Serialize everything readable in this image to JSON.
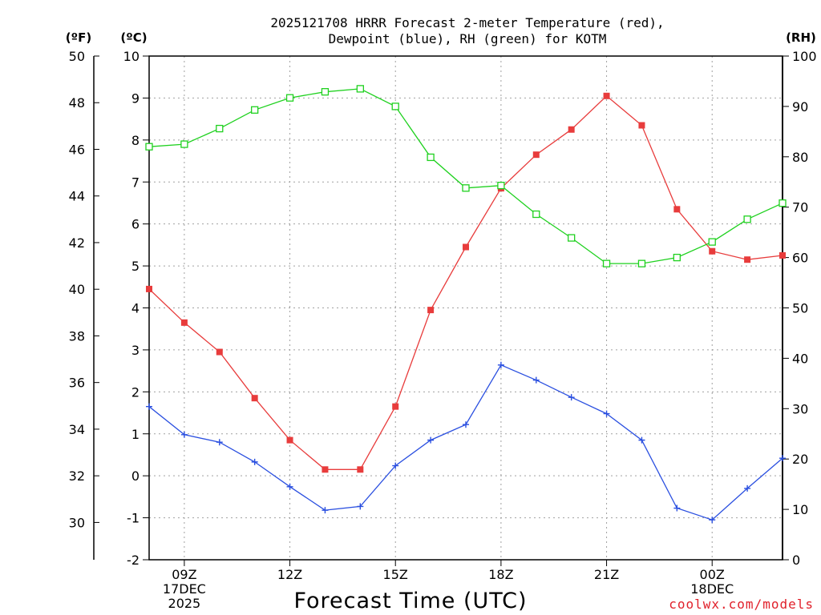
{
  "chart_data": {
    "type": "line",
    "title": [
      "2025121708 HRRR Forecast 2-meter Temperature (red),",
      "Dewpoint (blue), RH (green) for KOTM"
    ],
    "xlabel": "Forecast Time (UTC)",
    "credit": "coolwx.com/models",
    "units": {
      "fahrenheit": "(ºF)",
      "celsius": "(ºC)",
      "rh": "(RH)"
    },
    "x_hours": [
      8,
      9,
      10,
      11,
      12,
      13,
      14,
      15,
      16,
      17,
      18,
      19,
      20,
      21,
      22,
      23,
      24,
      25,
      26
    ],
    "xlim": [
      8,
      26
    ],
    "x_ticks": [
      {
        "hour": 9,
        "lines": [
          "09Z",
          "17DEC",
          "2025"
        ]
      },
      {
        "hour": 12,
        "lines": [
          "12Z"
        ]
      },
      {
        "hour": 15,
        "lines": [
          "15Z"
        ]
      },
      {
        "hour": 18,
        "lines": [
          "18Z"
        ]
      },
      {
        "hour": 21,
        "lines": [
          "21Z"
        ]
      },
      {
        "hour": 24,
        "lines": [
          "00Z",
          "18DEC"
        ]
      }
    ],
    "celsius_axis": {
      "ylim": [
        -2,
        10
      ],
      "ticks": [
        "-2",
        "-1",
        "0",
        "1",
        "2",
        "3",
        "4",
        "5",
        "6",
        "7",
        "8",
        "9",
        "10"
      ]
    },
    "fahrenheit_axis": {
      "ticks": [
        "30",
        "32",
        "34",
        "36",
        "38",
        "40",
        "42",
        "44",
        "46",
        "48",
        "50"
      ]
    },
    "rh_axis": {
      "ylim": [
        0,
        100
      ],
      "ticks": [
        "0",
        "10",
        "20",
        "30",
        "40",
        "50",
        "60",
        "70",
        "80",
        "90",
        "100"
      ]
    },
    "series": [
      {
        "name": "Temperature",
        "axis": "celsius",
        "color": "#e83c3c",
        "marker": "filled-square",
        "values": [
          4.45,
          3.65,
          2.95,
          1.85,
          0.85,
          0.15,
          0.15,
          1.65,
          3.95,
          5.45,
          6.85,
          7.65,
          8.25,
          9.05,
          8.35,
          6.35,
          5.35,
          5.15,
          5.25
        ]
      },
      {
        "name": "Dewpoint",
        "axis": "celsius",
        "color": "#2a4fe0",
        "marker": "plus",
        "values": [
          1.65,
          0.98,
          0.8,
          0.33,
          -0.26,
          -0.82,
          -0.73,
          0.24,
          0.85,
          1.22,
          2.64,
          2.28,
          1.87,
          1.48,
          0.85,
          -0.77,
          -1.05,
          -0.3,
          0.42
        ]
      },
      {
        "name": "RH",
        "axis": "rh",
        "color": "#1fd11f",
        "marker": "open-square",
        "values": [
          82.0,
          82.5,
          85.6,
          89.3,
          91.7,
          92.9,
          93.5,
          90.0,
          79.9,
          73.8,
          74.3,
          68.6,
          63.9,
          58.8,
          58.8,
          60.0,
          63.1,
          67.6,
          70.8
        ]
      }
    ]
  }
}
